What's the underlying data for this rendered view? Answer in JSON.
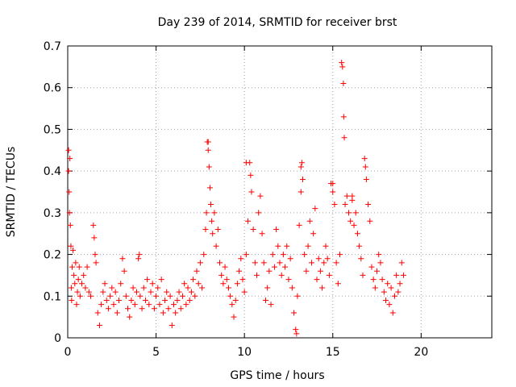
{
  "chart_data": {
    "type": "scatter",
    "title": "Day 239 of 2014, SRMTID for receiver brst",
    "xlabel": "GPS time / hours",
    "ylabel": "SRMTID / TECUs",
    "xlim": [
      0,
      24
    ],
    "ylim": [
      0,
      0.7
    ],
    "x_ticks": [
      "0",
      "5",
      "10",
      "15",
      "20"
    ],
    "y_ticks": [
      "0",
      "0.1",
      "0.2",
      "0.3",
      "0.4",
      "0.5",
      "0.6",
      "0.7"
    ],
    "grid": true,
    "marker": "+",
    "marker_color": "#ff0000",
    "series": [
      {
        "name": "SRMTID",
        "points": [
          [
            0.05,
            0.45
          ],
          [
            0.05,
            0.4
          ],
          [
            0.08,
            0.35
          ],
          [
            0.1,
            0.3
          ],
          [
            0.12,
            0.43
          ],
          [
            0.15,
            0.27
          ],
          [
            0.18,
            0.22
          ],
          [
            0.2,
            0.12
          ],
          [
            0.22,
            0.09
          ],
          [
            0.25,
            0.17
          ],
          [
            0.3,
            0.21
          ],
          [
            0.35,
            0.15
          ],
          [
            0.4,
            0.13
          ],
          [
            0.45,
            0.18
          ],
          [
            0.5,
            0.08
          ],
          [
            0.55,
            0.11
          ],
          [
            0.6,
            0.14
          ],
          [
            0.65,
            0.17
          ],
          [
            0.7,
            0.1
          ],
          [
            0.8,
            0.13
          ],
          [
            0.9,
            0.15
          ],
          [
            1.0,
            0.12
          ],
          [
            1.1,
            0.17
          ],
          [
            1.2,
            0.11
          ],
          [
            1.3,
            0.1
          ],
          [
            1.45,
            0.27
          ],
          [
            1.5,
            0.24
          ],
          [
            1.55,
            0.2
          ],
          [
            1.6,
            0.18
          ],
          [
            1.7,
            0.06
          ],
          [
            1.8,
            0.03
          ],
          [
            1.9,
            0.08
          ],
          [
            2.0,
            0.11
          ],
          [
            2.1,
            0.13
          ],
          [
            2.2,
            0.09
          ],
          [
            2.3,
            0.07
          ],
          [
            2.4,
            0.1
          ],
          [
            2.5,
            0.12
          ],
          [
            2.6,
            0.08
          ],
          [
            2.7,
            0.11
          ],
          [
            2.8,
            0.06
          ],
          [
            2.9,
            0.09
          ],
          [
            3.0,
            0.13
          ],
          [
            3.1,
            0.19
          ],
          [
            3.2,
            0.16
          ],
          [
            3.3,
            0.1
          ],
          [
            3.4,
            0.07
          ],
          [
            3.5,
            0.05
          ],
          [
            3.6,
            0.09
          ],
          [
            3.7,
            0.12
          ],
          [
            3.8,
            0.08
          ],
          [
            3.9,
            0.11
          ],
          [
            4.0,
            0.19
          ],
          [
            4.05,
            0.2
          ],
          [
            4.1,
            0.1
          ],
          [
            4.2,
            0.07
          ],
          [
            4.3,
            0.12
          ],
          [
            4.4,
            0.09
          ],
          [
            4.5,
            0.14
          ],
          [
            4.6,
            0.08
          ],
          [
            4.7,
            0.11
          ],
          [
            4.8,
            0.13
          ],
          [
            4.9,
            0.07
          ],
          [
            5.0,
            0.1
          ],
          [
            5.1,
            0.12
          ],
          [
            5.2,
            0.08
          ],
          [
            5.3,
            0.14
          ],
          [
            5.4,
            0.06
          ],
          [
            5.5,
            0.09
          ],
          [
            5.6,
            0.11
          ],
          [
            5.7,
            0.07
          ],
          [
            5.8,
            0.1
          ],
          [
            5.9,
            0.03
          ],
          [
            6.0,
            0.08
          ],
          [
            6.1,
            0.06
          ],
          [
            6.2,
            0.09
          ],
          [
            6.3,
            0.11
          ],
          [
            6.4,
            0.07
          ],
          [
            6.5,
            0.1
          ],
          [
            6.6,
            0.13
          ],
          [
            6.7,
            0.08
          ],
          [
            6.8,
            0.12
          ],
          [
            6.9,
            0.09
          ],
          [
            7.0,
            0.11
          ],
          [
            7.1,
            0.14
          ],
          [
            7.2,
            0.1
          ],
          [
            7.3,
            0.16
          ],
          [
            7.4,
            0.13
          ],
          [
            7.5,
            0.18
          ],
          [
            7.6,
            0.12
          ],
          [
            7.7,
            0.2
          ],
          [
            7.8,
            0.26
          ],
          [
            7.85,
            0.3
          ],
          [
            7.9,
            0.47
          ],
          [
            7.95,
            0.45
          ],
          [
            8.0,
            0.41
          ],
          [
            8.05,
            0.36
          ],
          [
            8.1,
            0.32
          ],
          [
            8.15,
            0.28
          ],
          [
            8.2,
            0.25
          ],
          [
            8.3,
            0.3
          ],
          [
            8.4,
            0.22
          ],
          [
            8.5,
            0.26
          ],
          [
            8.6,
            0.18
          ],
          [
            8.7,
            0.15
          ],
          [
            8.8,
            0.13
          ],
          [
            8.9,
            0.17
          ],
          [
            9.0,
            0.14
          ],
          [
            9.1,
            0.12
          ],
          [
            9.2,
            0.1
          ],
          [
            9.3,
            0.08
          ],
          [
            9.4,
            0.05
          ],
          [
            9.5,
            0.09
          ],
          [
            9.6,
            0.13
          ],
          [
            9.7,
            0.16
          ],
          [
            9.8,
            0.19
          ],
          [
            9.9,
            0.14
          ],
          [
            10.0,
            0.11
          ],
          [
            10.1,
            0.2
          ],
          [
            10.2,
            0.28
          ],
          [
            10.3,
            0.42
          ],
          [
            10.35,
            0.39
          ],
          [
            10.4,
            0.35
          ],
          [
            10.5,
            0.26
          ],
          [
            10.6,
            0.18
          ],
          [
            10.7,
            0.15
          ],
          [
            10.8,
            0.3
          ],
          [
            10.9,
            0.34
          ],
          [
            11.0,
            0.25
          ],
          [
            11.1,
            0.18
          ],
          [
            11.2,
            0.09
          ],
          [
            11.3,
            0.12
          ],
          [
            11.4,
            0.16
          ],
          [
            11.5,
            0.08
          ],
          [
            11.6,
            0.2
          ],
          [
            11.7,
            0.17
          ],
          [
            11.8,
            0.26
          ],
          [
            11.9,
            0.22
          ],
          [
            12.0,
            0.18
          ],
          [
            12.1,
            0.15
          ],
          [
            12.2,
            0.2
          ],
          [
            12.3,
            0.17
          ],
          [
            12.4,
            0.22
          ],
          [
            12.5,
            0.14
          ],
          [
            12.6,
            0.19
          ],
          [
            12.7,
            0.12
          ],
          [
            12.8,
            0.06
          ],
          [
            12.9,
            0.02
          ],
          [
            12.95,
            0.01
          ],
          [
            13.0,
            0.1
          ],
          [
            13.1,
            0.27
          ],
          [
            13.2,
            0.35
          ],
          [
            13.25,
            0.42
          ],
          [
            13.3,
            0.38
          ],
          [
            13.4,
            0.2
          ],
          [
            13.5,
            0.16
          ],
          [
            13.6,
            0.22
          ],
          [
            13.7,
            0.28
          ],
          [
            13.8,
            0.18
          ],
          [
            13.9,
            0.25
          ],
          [
            14.0,
            0.31
          ],
          [
            14.1,
            0.14
          ],
          [
            14.2,
            0.19
          ],
          [
            14.3,
            0.16
          ],
          [
            14.4,
            0.12
          ],
          [
            14.5,
            0.18
          ],
          [
            14.6,
            0.22
          ],
          [
            14.7,
            0.19
          ],
          [
            14.8,
            0.15
          ],
          [
            14.9,
            0.37
          ],
          [
            15.0,
            0.35
          ],
          [
            15.1,
            0.32
          ],
          [
            15.2,
            0.18
          ],
          [
            15.3,
            0.13
          ],
          [
            15.4,
            0.2
          ],
          [
            15.5,
            0.66
          ],
          [
            15.55,
            0.65
          ],
          [
            15.6,
            0.61
          ],
          [
            15.62,
            0.53
          ],
          [
            15.65,
            0.48
          ],
          [
            15.7,
            0.32
          ],
          [
            15.8,
            0.34
          ],
          [
            15.9,
            0.3
          ],
          [
            16.0,
            0.28
          ],
          [
            16.1,
            0.33
          ],
          [
            16.2,
            0.27
          ],
          [
            16.3,
            0.3
          ],
          [
            16.4,
            0.25
          ],
          [
            16.5,
            0.22
          ],
          [
            16.6,
            0.19
          ],
          [
            16.7,
            0.15
          ],
          [
            16.8,
            0.43
          ],
          [
            16.85,
            0.41
          ],
          [
            16.9,
            0.38
          ],
          [
            17.0,
            0.32
          ],
          [
            17.1,
            0.28
          ],
          [
            17.2,
            0.17
          ],
          [
            17.3,
            0.14
          ],
          [
            17.4,
            0.12
          ],
          [
            17.5,
            0.16
          ],
          [
            17.6,
            0.2
          ],
          [
            17.7,
            0.18
          ],
          [
            17.8,
            0.14
          ],
          [
            17.9,
            0.11
          ],
          [
            18.0,
            0.09
          ],
          [
            18.1,
            0.13
          ],
          [
            18.2,
            0.08
          ],
          [
            18.3,
            0.12
          ],
          [
            18.4,
            0.06
          ],
          [
            18.5,
            0.1
          ],
          [
            18.6,
            0.15
          ],
          [
            18.7,
            0.11
          ],
          [
            18.8,
            0.13
          ],
          [
            18.9,
            0.18
          ],
          [
            19.0,
            0.15
          ],
          [
            7.95,
            0.47
          ],
          [
            13.2,
            0.41
          ],
          [
            15.0,
            0.37
          ],
          [
            16.1,
            0.34
          ],
          [
            10.1,
            0.42
          ]
        ]
      }
    ]
  }
}
